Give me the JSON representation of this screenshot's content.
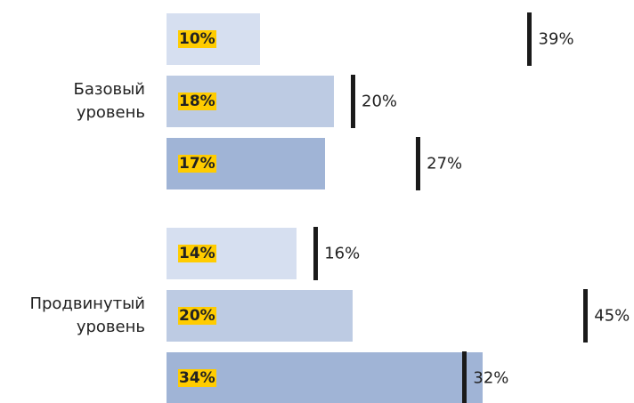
{
  "chart_data": {
    "type": "bar",
    "categories": [
      "Базовый уровень",
      "Продвинутый уровень"
    ],
    "xlim": [
      0,
      50
    ],
    "series": [
      {
        "color": "#d6dff0",
        "values": [
          10,
          14
        ],
        "value_labels": [
          "10%",
          "14%"
        ],
        "markers": [
          39,
          16
        ],
        "marker_labels": [
          "39%",
          "16%"
        ]
      },
      {
        "color": "#bdcbe3",
        "values": [
          18,
          20
        ],
        "value_labels": [
          "18%",
          "20%"
        ],
        "markers": [
          20,
          45
        ],
        "marker_labels": [
          "20%",
          "45%"
        ]
      },
      {
        "color": "#a0b4d6",
        "values": [
          17,
          34
        ],
        "value_labels": [
          "17%",
          "34%"
        ],
        "markers": [
          27,
          32
        ],
        "marker_labels": [
          "27%",
          "32%"
        ]
      }
    ],
    "marker_color": "#1a1a1a",
    "highlight_color": "#ffcc00"
  }
}
